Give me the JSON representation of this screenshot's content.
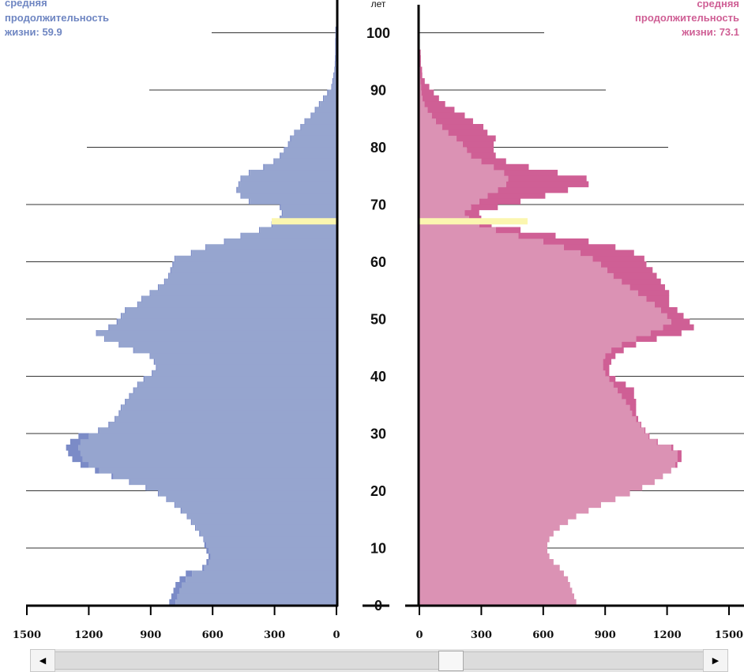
{
  "chart_data": {
    "type": "bar",
    "subtype": "population-pyramid",
    "y_unit_label": "лет",
    "age_ticks": [
      "0",
      "10",
      "20",
      "30",
      "40",
      "50",
      "60",
      "70",
      "80",
      "90",
      "100"
    ],
    "age_range": [
      0,
      100
    ],
    "male": {
      "name": "male",
      "color": "#96a5cf",
      "overlay_color": "#7b8bc7",
      "xlim": [
        0,
        1500
      ],
      "ticks": [
        "1500",
        "1200",
        "900",
        "600",
        "300",
        "0"
      ],
      "life_expectancy_label": [
        "средняя",
        "продолжительность",
        "жизни: 59.9"
      ],
      "values": [
        780,
        770,
        760,
        750,
        730,
        700,
        640,
        620,
        610,
        620,
        630,
        640,
        660,
        680,
        700,
        720,
        750,
        780,
        820,
        860,
        920,
        1000,
        1080,
        1150,
        1200,
        1230,
        1240,
        1250,
        1240,
        1200,
        1150,
        1100,
        1070,
        1050,
        1040,
        1020,
        1000,
        980,
        960,
        930,
        890,
        870,
        880,
        900,
        980,
        1050,
        1120,
        1160,
        1100,
        1060,
        1040,
        1020,
        960,
        940,
        900,
        860,
        830,
        810,
        800,
        790,
        780,
        700,
        630,
        540,
        460,
        370,
        310,
        270,
        260,
        270,
        420,
        460,
        480,
        470,
        460,
        420,
        350,
        300,
        270,
        250,
        230,
        220,
        200,
        170,
        150,
        120,
        100,
        80,
        60,
        40,
        20,
        15,
        10,
        5,
        3,
        2,
        1,
        1,
        1,
        0,
        0,
        0,
        0
      ],
      "extra": [
        30,
        30,
        30,
        30,
        30,
        30,
        10,
        10,
        10,
        10,
        10,
        5,
        5,
        5,
        5,
        5,
        5,
        5,
        5,
        5,
        5,
        5,
        10,
        20,
        40,
        50,
        60,
        60,
        50,
        50,
        5,
        5,
        5,
        5,
        5,
        5,
        5,
        5,
        5,
        5,
        5,
        5,
        5,
        5,
        5,
        5,
        5,
        5,
        5,
        5,
        5,
        5,
        5,
        5,
        5,
        5,
        5,
        5,
        5,
        5,
        5,
        5,
        5,
        5,
        5,
        5,
        5,
        5,
        5,
        5,
        5,
        5,
        5,
        5,
        5,
        5,
        5,
        5,
        5,
        5,
        5,
        5,
        5,
        5,
        5,
        5,
        5,
        5,
        5,
        5,
        5,
        5,
        5,
        5,
        5,
        5,
        5,
        5,
        5,
        5,
        5
      ]
    },
    "female": {
      "name": "female",
      "color": "#db92b4",
      "overlay_color": "#cf5f95",
      "xlim": [
        0,
        1500
      ],
      "ticks": [
        "0",
        "300",
        "600",
        "900",
        "1200",
        "1500"
      ],
      "life_expectancy_label": [
        "средняя",
        "продолжительность",
        "жизни: 73.1"
      ],
      "values": [
        760,
        750,
        740,
        730,
        720,
        700,
        680,
        650,
        630,
        620,
        620,
        630,
        650,
        680,
        720,
        760,
        820,
        880,
        950,
        1020,
        1080,
        1140,
        1180,
        1220,
        1240,
        1250,
        1250,
        1220,
        1150,
        1110,
        1090,
        1070,
        1050,
        1030,
        1020,
        1000,
        980,
        960,
        940,
        920,
        900,
        890,
        890,
        900,
        930,
        980,
        1050,
        1120,
        1180,
        1220,
        1200,
        1170,
        1140,
        1100,
        1060,
        1020,
        980,
        940,
        910,
        880,
        840,
        780,
        700,
        600,
        480,
        370,
        290,
        240,
        220,
        250,
        290,
        330,
        380,
        420,
        430,
        410,
        360,
        300,
        250,
        230,
        210,
        180,
        140,
        110,
        80,
        60,
        40,
        25,
        15,
        10,
        8,
        6,
        4,
        3,
        2,
        2,
        1,
        1,
        1,
        1,
        0
      ],
      "extra": [
        0,
        0,
        0,
        0,
        0,
        0,
        0,
        0,
        0,
        0,
        0,
        0,
        0,
        0,
        0,
        0,
        0,
        0,
        0,
        0,
        0,
        0,
        0,
        0,
        10,
        20,
        20,
        10,
        5,
        5,
        5,
        5,
        10,
        20,
        30,
        50,
        60,
        80,
        60,
        30,
        20,
        30,
        40,
        50,
        60,
        70,
        100,
        150,
        150,
        90,
        80,
        80,
        70,
        110,
        150,
        170,
        190,
        210,
        220,
        220,
        250,
        260,
        250,
        220,
        180,
        120,
        60,
        60,
        70,
        130,
        200,
        280,
        340,
        400,
        380,
        260,
        170,
        120,
        120,
        130,
        150,
        190,
        190,
        200,
        180,
        160,
        130,
        100,
        80,
        60,
        40,
        20,
        10,
        10,
        5,
        5,
        5,
        0,
        0,
        0,
        0
      ]
    },
    "highlight": {
      "age": 67,
      "color": "#fbf6b0"
    }
  },
  "scrollbar": {
    "left_arrow": "◀",
    "right_arrow": "▶",
    "thumb_position": 0.616
  }
}
